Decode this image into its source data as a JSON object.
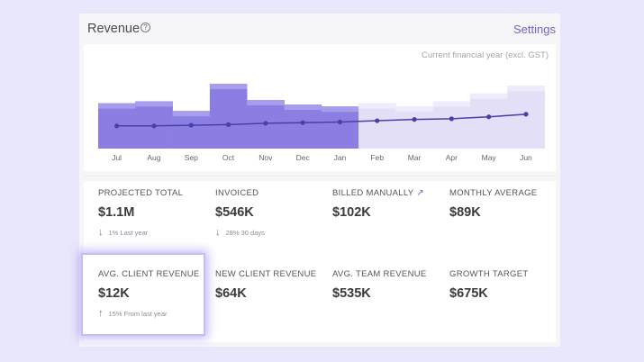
{
  "header": {
    "title": "Revenue",
    "help_icon": "help-circle-icon",
    "settings_label": "Settings"
  },
  "chart_data": {
    "type": "bar",
    "caption": "Current financial year (excl. GST)",
    "categories": [
      "Jul",
      "Aug",
      "Sep",
      "Oct",
      "Nov",
      "Dec",
      "Jan",
      "Feb",
      "Mar",
      "Apr",
      "May",
      "Jun"
    ],
    "ylim": [
      0,
      100
    ],
    "series": [
      {
        "name": "actual",
        "values": [
          70,
          73,
          58,
          100,
          75,
          68,
          65,
          null,
          null,
          null,
          null,
          null
        ]
      },
      {
        "name": "projected",
        "values": [
          null,
          null,
          null,
          null,
          null,
          null,
          null,
          70,
          65,
          73,
          85,
          97
        ]
      },
      {
        "name": "trend",
        "values": [
          35,
          35,
          36,
          37,
          39,
          40,
          41,
          43,
          45,
          46,
          49,
          53
        ]
      }
    ],
    "colors": {
      "actual": "#8a7ee3",
      "actual_top": "#a69ded",
      "projected": "#e2dff7",
      "projected_top": "#eeecfb",
      "line": "#4b3fa7"
    }
  },
  "stats": [
    {
      "label": "PROJECTED TOTAL",
      "value": "$1.1M",
      "delta": "1% Last year",
      "arrow": "↓"
    },
    {
      "label": "INVOICED",
      "value": "$546K",
      "delta": "28% 30 days",
      "arrow": "↓"
    },
    {
      "label": "BILLED MANUALLY",
      "value": "$102K",
      "link_icon": "↗"
    },
    {
      "label": "MONTHLY AVERAGE",
      "value": "$89K"
    },
    {
      "label": "AVG. CLIENT REVENUE",
      "value": "$12K",
      "delta": "15% From last year",
      "arrow": "↑"
    },
    {
      "label": "NEW CLIENT REVENUE",
      "value": "$64K"
    },
    {
      "label": "AVG. TEAM REVENUE",
      "value": "$535K"
    },
    {
      "label": "GROWTH TARGET",
      "value": "$675K"
    }
  ]
}
